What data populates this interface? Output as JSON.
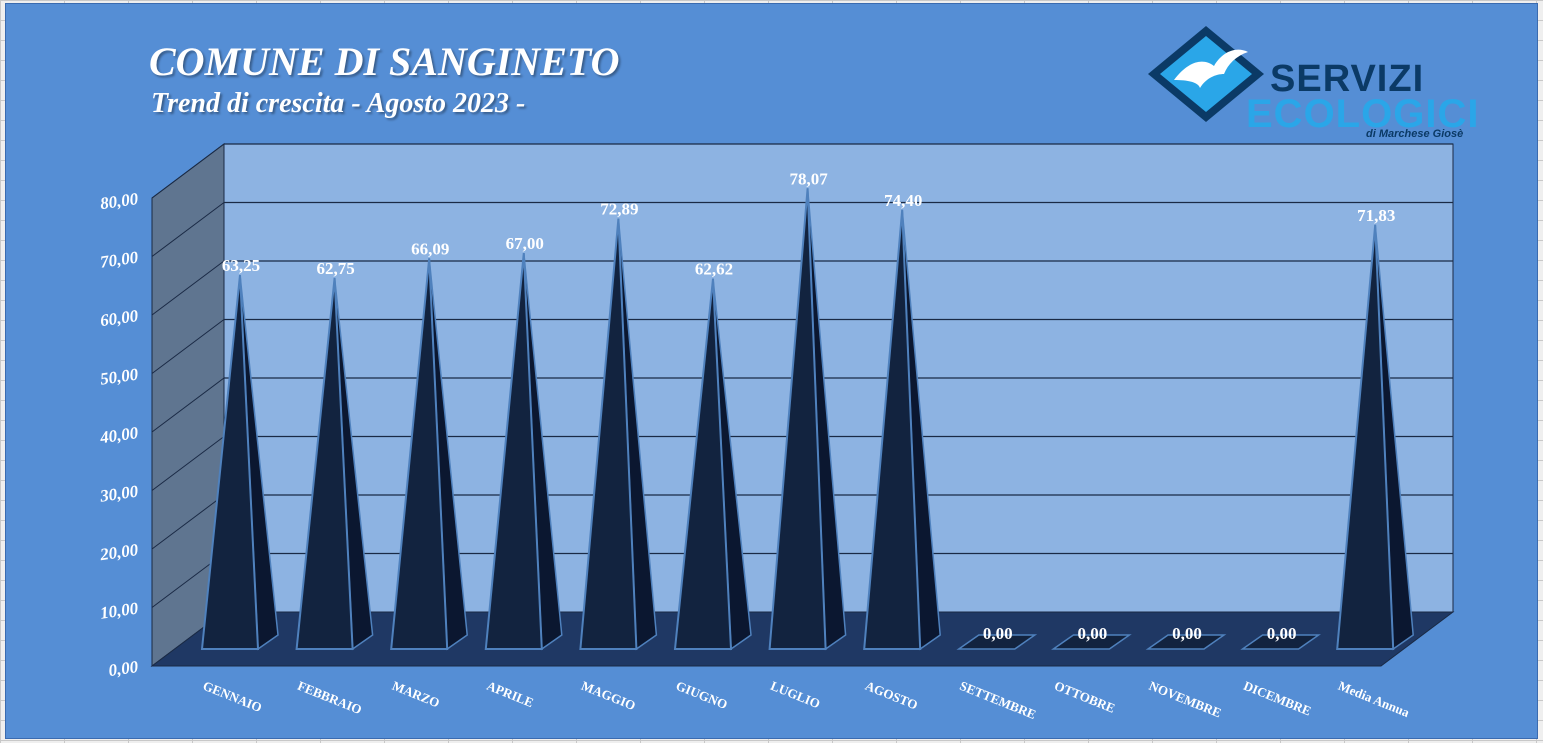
{
  "chart_data": {
    "type": "bar",
    "shape": "pyramid-3d",
    "title": "COMUNE DI SANGINETO",
    "subtitle": "Trend di crescita - Agosto 2023 -",
    "categories": [
      "GENNAIO",
      "FEBBRAIO",
      "MARZO",
      "APRILE",
      "MAGGIO",
      "GIUGNO",
      "LUGLIO",
      "AGOSTO",
      "SETTEMBRE",
      "OTTOBRE",
      "NOVEMBRE",
      "DICEMBRE",
      "Media Annua"
    ],
    "values": [
      63.25,
      62.75,
      66.09,
      67.0,
      72.89,
      62.62,
      78.07,
      74.4,
      0.0,
      0.0,
      0.0,
      0.0,
      71.83
    ],
    "data_labels": [
      "63,25",
      "62,75",
      "66,09",
      "67,00",
      "72,89",
      "62,62",
      "78,07",
      "74,40",
      "0,00",
      "0,00",
      "0,00",
      "0,00",
      "71,83"
    ],
    "yticks": [
      "0,00",
      "10,00",
      "20,00",
      "30,00",
      "40,00",
      "50,00",
      "60,00",
      "70,00",
      "80,00"
    ],
    "ylim": [
      0,
      80
    ],
    "grid": true,
    "legend": "none",
    "colors": {
      "background": "#558ed5",
      "plot_back_wall": "#8db3e2",
      "side_wall": "#5f7590",
      "floor": "#1f3864",
      "pyramid_front": "#12233f",
      "pyramid_side": "#0b1730",
      "pyramid_edge": "#4f81bd",
      "gridline": "#1a2a45",
      "text": "#ffffff"
    }
  },
  "logo": {
    "line1": "SERVIZI",
    "line2": "ECOLOGICI",
    "line3": "di Marchese Giosè",
    "icon": "seagull-diamond-icon"
  }
}
